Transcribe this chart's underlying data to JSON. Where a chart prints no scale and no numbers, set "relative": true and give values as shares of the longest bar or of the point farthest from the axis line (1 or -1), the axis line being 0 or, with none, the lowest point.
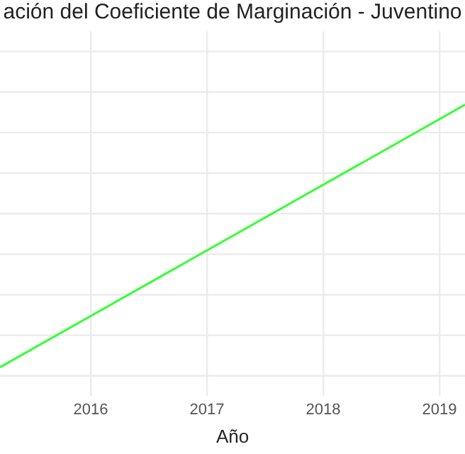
{
  "chart_data": {
    "type": "line",
    "title": "ación del Coeficiente de Marginación - Juventino",
    "xlabel": "Año",
    "relative": true,
    "x": [
      2015.22,
      2016,
      2017,
      2018,
      2019,
      2019.22
    ],
    "series": [
      {
        "color": "#33ff33",
        "values": [
          0,
          0.195,
          0.445,
          0.695,
          0.945,
          1
        ]
      }
    ],
    "xlim": [
      2015.22,
      2019.22
    ],
    "xticks": [
      2016,
      2017,
      2018,
      2019
    ],
    "grid": true,
    "legend": false,
    "marker": "none"
  }
}
